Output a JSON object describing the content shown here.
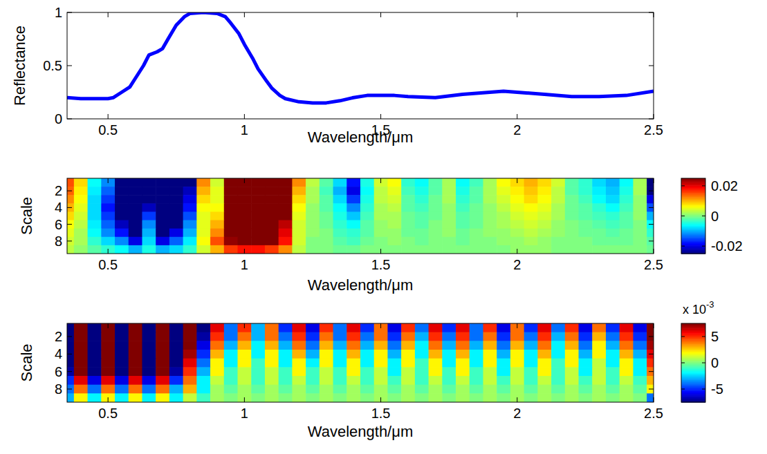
{
  "chart_data": [
    {
      "type": "line",
      "x_label": "Wavelength/μm",
      "y_label": "Reflectance",
      "color": "#0000ff",
      "xlim": [
        0.35,
        2.5
      ],
      "xticks": [
        0.5,
        1,
        1.5,
        2,
        2.5
      ],
      "ylim": [
        0,
        1
      ],
      "yticks": [
        0,
        0.5,
        1
      ],
      "x": [
        0.35,
        0.4,
        0.45,
        0.5,
        0.52,
        0.55,
        0.58,
        0.6,
        0.63,
        0.65,
        0.68,
        0.7,
        0.72,
        0.75,
        0.78,
        0.8,
        0.85,
        0.9,
        0.93,
        0.95,
        0.98,
        1,
        1.03,
        1.05,
        1.08,
        1.1,
        1.13,
        1.15,
        1.2,
        1.25,
        1.3,
        1.35,
        1.4,
        1.45,
        1.5,
        1.55,
        1.6,
        1.7,
        1.8,
        1.9,
        1.95,
        2,
        2.1,
        2.2,
        2.3,
        2.4,
        2.5
      ],
      "values": [
        0.2,
        0.19,
        0.19,
        0.19,
        0.2,
        0.25,
        0.3,
        0.38,
        0.5,
        0.6,
        0.63,
        0.66,
        0.75,
        0.88,
        0.96,
        0.99,
        1,
        0.99,
        0.96,
        0.9,
        0.8,
        0.7,
        0.57,
        0.47,
        0.36,
        0.29,
        0.22,
        0.19,
        0.16,
        0.15,
        0.15,
        0.17,
        0.2,
        0.22,
        0.22,
        0.22,
        0.21,
        0.2,
        0.23,
        0.25,
        0.26,
        0.25,
        0.23,
        0.21,
        0.21,
        0.22,
        0.26
      ]
    },
    {
      "type": "heatmap",
      "x_label": "Wavelength/μm",
      "y_label": "Scale",
      "xlim": [
        0.35,
        2.5
      ],
      "xticks": [
        0.5,
        1,
        1.5,
        2,
        2.5
      ],
      "ylim": [
        0.5,
        9.5
      ],
      "yticks": [
        2,
        4,
        6,
        8
      ],
      "x": [
        0.35,
        0.4,
        0.45,
        0.5,
        0.55,
        0.6,
        0.65,
        0.7,
        0.75,
        0.8,
        0.85,
        0.9,
        0.95,
        1,
        1.05,
        1.1,
        1.15,
        1.2,
        1.25,
        1.3,
        1.35,
        1.4,
        1.45,
        1.5,
        1.55,
        1.6,
        1.65,
        1.7,
        1.75,
        1.8,
        1.85,
        1.9,
        1.95,
        2,
        2.05,
        2.1,
        2.15,
        2.2,
        2.25,
        2.3,
        2.35,
        2.4,
        2.45,
        2.5
      ],
      "y": [
        1,
        2,
        3,
        4,
        5,
        6,
        7,
        8,
        9
      ],
      "cells": [
        [
          0.015,
          0.008,
          -0.006,
          -0.012,
          -0.03,
          -0.03,
          -0.03,
          -0.03,
          -0.03,
          -0.025,
          0.012,
          0.004,
          0.03,
          0.03,
          0.03,
          0.03,
          0.03,
          0.012,
          0.003,
          -0.002,
          -0.008,
          -0.018,
          -0.005,
          0.004,
          0.006,
          -0.004,
          -0.006,
          -0.002,
          0.002,
          -0.006,
          -0.003,
          0.002,
          0.006,
          0.008,
          0.01,
          0.008,
          0.004,
          -0.002,
          -0.004,
          -0.008,
          -0.01,
          -0.006,
          0.002,
          -0.03
        ],
        [
          0.014,
          0.007,
          -0.007,
          -0.014,
          -0.03,
          -0.03,
          -0.03,
          -0.03,
          -0.03,
          -0.022,
          0.01,
          0.005,
          0.03,
          0.03,
          0.03,
          0.03,
          0.03,
          0.01,
          0.002,
          -0.003,
          -0.01,
          -0.02,
          -0.006,
          0.003,
          0.005,
          -0.003,
          -0.005,
          -0.002,
          0.002,
          -0.005,
          -0.002,
          0.002,
          0.005,
          0.007,
          0.009,
          0.007,
          0.003,
          -0.002,
          -0.004,
          -0.007,
          -0.009,
          -0.005,
          0.002,
          -0.025
        ],
        [
          0.012,
          0.006,
          -0.008,
          -0.016,
          -0.03,
          -0.03,
          -0.03,
          -0.03,
          -0.03,
          -0.02,
          0.008,
          0.005,
          0.03,
          0.03,
          0.03,
          0.03,
          0.03,
          0.008,
          0.002,
          -0.002,
          -0.008,
          -0.016,
          -0.005,
          0.003,
          0.004,
          -0.002,
          -0.004,
          -0.001,
          0.002,
          -0.004,
          -0.002,
          0.002,
          0.004,
          0.006,
          0.008,
          0.006,
          0.003,
          -0.001,
          -0.003,
          -0.006,
          -0.008,
          -0.004,
          0.001,
          -0.02
        ],
        [
          0.01,
          0.005,
          -0.008,
          -0.018,
          -0.03,
          -0.03,
          -0.022,
          -0.03,
          -0.03,
          -0.018,
          0.006,
          0.006,
          0.03,
          0.03,
          0.03,
          0.03,
          0.028,
          0.006,
          0.001,
          -0.002,
          -0.006,
          -0.012,
          -0.004,
          0.002,
          0.003,
          -0.002,
          -0.003,
          -0.001,
          0.001,
          -0.003,
          -0.001,
          0.001,
          0.003,
          0.005,
          0.006,
          0.005,
          0.002,
          -0.001,
          -0.002,
          -0.004,
          -0.006,
          -0.003,
          0.001,
          -0.015
        ],
        [
          0.008,
          0.004,
          -0.008,
          -0.016,
          -0.025,
          -0.03,
          -0.016,
          -0.03,
          -0.028,
          -0.015,
          0.005,
          0.008,
          0.03,
          0.03,
          0.03,
          0.03,
          0.025,
          0.005,
          0.001,
          -0.001,
          -0.005,
          -0.009,
          -0.003,
          0.002,
          0.002,
          -0.001,
          -0.002,
          -0.001,
          0.001,
          -0.002,
          -0.001,
          0.001,
          0.002,
          0.004,
          0.005,
          0.004,
          0.002,
          -0.001,
          -0.002,
          -0.003,
          -0.004,
          -0.002,
          0.001,
          -0.01
        ],
        [
          0.006,
          0.003,
          -0.007,
          -0.014,
          -0.022,
          -0.03,
          -0.012,
          -0.03,
          -0.025,
          -0.012,
          0.005,
          0.01,
          0.028,
          0.03,
          0.03,
          0.03,
          0.022,
          0.004,
          0.001,
          -0.001,
          -0.004,
          -0.006,
          -0.002,
          0.001,
          0.002,
          -0.001,
          -0.002,
          0,
          0.001,
          -0.002,
          -0.001,
          0.001,
          0.002,
          0.003,
          0.004,
          0.003,
          0.001,
          0,
          -0.001,
          -0.002,
          -0.003,
          -0.002,
          0,
          -0.006
        ],
        [
          0.005,
          0.002,
          -0.006,
          -0.012,
          -0.018,
          -0.028,
          -0.01,
          -0.028,
          -0.02,
          -0.01,
          0.005,
          0.012,
          0.026,
          0.03,
          0.03,
          0.03,
          0.02,
          0.004,
          0.001,
          0,
          -0.003,
          -0.004,
          -0.002,
          0.001,
          0.001,
          -0.001,
          -0.001,
          0,
          0.001,
          -0.001,
          0,
          0.001,
          0.001,
          0.002,
          0.003,
          0.002,
          0.001,
          0,
          -0.001,
          -0.001,
          -0.002,
          -0.001,
          0,
          -0.004
        ],
        [
          0.004,
          0.002,
          -0.004,
          -0.008,
          -0.012,
          -0.02,
          -0.008,
          -0.02,
          -0.014,
          -0.007,
          0.006,
          0.015,
          0.024,
          0.028,
          0.028,
          0.026,
          0.018,
          0.004,
          0,
          0,
          -0.002,
          -0.003,
          -0.001,
          0,
          0.001,
          0,
          -0.001,
          0,
          0,
          -0.001,
          0,
          0,
          0.001,
          0.001,
          0.002,
          0.001,
          0,
          0,
          0,
          -0.001,
          -0.001,
          -0.001,
          0,
          -0.002
        ],
        [
          0.003,
          0.001,
          -0.002,
          -0.004,
          -0.006,
          -0.01,
          -0.005,
          -0.01,
          -0.008,
          -0.004,
          0.004,
          0.01,
          0.016,
          0.018,
          0.018,
          0.016,
          0.012,
          0.003,
          0,
          0,
          -0.001,
          -0.001,
          0,
          0,
          0,
          0,
          0,
          0,
          0,
          0,
          0,
          0,
          0,
          0.001,
          0.001,
          0.001,
          0,
          0,
          0,
          0,
          0,
          0,
          0,
          -0.001
        ]
      ],
      "colorbar": {
        "range": [
          -0.025,
          0.025
        ],
        "ticks": [
          -0.02,
          0,
          0.02
        ]
      }
    },
    {
      "type": "heatmap",
      "x_label": "Wavelength/μm",
      "y_label": "Scale",
      "xlim": [
        0.35,
        2.5
      ],
      "xticks": [
        0.5,
        1,
        1.5,
        2,
        2.5
      ],
      "ylim": [
        0.5,
        9.5
      ],
      "yticks": [
        2,
        4,
        6,
        8
      ],
      "x": [
        0.35,
        0.4,
        0.45,
        0.5,
        0.55,
        0.6,
        0.65,
        0.7,
        0.75,
        0.8,
        0.85,
        0.9,
        0.95,
        1,
        1.05,
        1.1,
        1.15,
        1.2,
        1.25,
        1.3,
        1.35,
        1.4,
        1.45,
        1.5,
        1.55,
        1.6,
        1.65,
        1.7,
        1.75,
        1.8,
        1.85,
        1.9,
        1.95,
        2,
        2.05,
        2.1,
        2.15,
        2.2,
        2.25,
        2.3,
        2.35,
        2.4,
        2.45,
        2.5
      ],
      "y": [
        1,
        2,
        3,
        4,
        5,
        6,
        7,
        8,
        9
      ],
      "cells": [
        [
          -8,
          8,
          -8,
          8,
          -8,
          8,
          -8,
          8,
          -8,
          8,
          -8,
          6,
          -4,
          5,
          -3,
          4,
          -5,
          6,
          -6,
          5,
          -4,
          6,
          -5,
          4,
          -6,
          5,
          -4,
          6,
          -5,
          6,
          -4,
          5,
          -6,
          4,
          -5,
          6,
          -4,
          5,
          -6,
          4,
          -5,
          6,
          -6,
          8
        ],
        [
          -8,
          8,
          -8,
          8,
          -8,
          8,
          -8,
          8,
          -8,
          8,
          -7,
          5,
          -4,
          4,
          -3,
          4,
          -4,
          5,
          -5,
          4,
          -4,
          5,
          -4,
          4,
          -5,
          4,
          -3,
          5,
          -4,
          5,
          -4,
          4,
          -5,
          4,
          -4,
          5,
          -3,
          4,
          -5,
          3,
          -4,
          5,
          -5,
          8
        ],
        [
          -8,
          8,
          -8,
          8,
          -8,
          8,
          -8,
          8,
          -8,
          8,
          -6,
          4,
          -3,
          3,
          -2,
          3,
          -3,
          4,
          -4,
          3,
          -3,
          4,
          -3,
          3,
          -4,
          3,
          -2,
          4,
          -3,
          4,
          -3,
          3,
          -4,
          3,
          -3,
          4,
          -2,
          3,
          -4,
          2,
          -3,
          4,
          -4,
          7
        ],
        [
          -8,
          8,
          -8,
          8,
          -8,
          8,
          -8,
          8,
          -8,
          7,
          -5,
          3,
          -2,
          2,
          -2,
          2,
          -2,
          3,
          -3,
          2,
          -2,
          3,
          -2,
          2,
          -3,
          2,
          -2,
          3,
          -2,
          3,
          -2,
          2,
          -3,
          2,
          -2,
          3,
          -2,
          2,
          -3,
          2,
          -2,
          3,
          -3,
          6
        ],
        [
          -8,
          8,
          -8,
          8,
          -8,
          8,
          -8,
          8,
          -8,
          6,
          -4,
          2,
          -2,
          2,
          -1,
          2,
          -2,
          2,
          -2,
          2,
          -2,
          2,
          -2,
          2,
          -2,
          2,
          -1,
          2,
          -2,
          2,
          -2,
          2,
          -2,
          2,
          -2,
          2,
          -1,
          2,
          -2,
          1,
          -2,
          2,
          -2,
          5
        ],
        [
          -7,
          8,
          -8,
          8,
          -8,
          8,
          -8,
          8,
          -7,
          5,
          -3,
          2,
          -1,
          1,
          -1,
          1,
          -1,
          2,
          -1,
          1,
          -1,
          2,
          -1,
          1,
          -2,
          1,
          -1,
          2,
          -1,
          2,
          -1,
          1,
          -2,
          1,
          -1,
          2,
          -1,
          1,
          -2,
          1,
          -1,
          2,
          -2,
          4
        ],
        [
          -5,
          6,
          -6,
          6,
          -6,
          6,
          -6,
          6,
          -5,
          4,
          -2,
          1,
          -1,
          1,
          -1,
          1,
          -1,
          1,
          -1,
          1,
          -1,
          1,
          -1,
          1,
          -1,
          1,
          -1,
          1,
          -1,
          1,
          -1,
          1,
          -1,
          1,
          -1,
          1,
          -1,
          1,
          -1,
          1,
          -1,
          1,
          -1,
          3
        ],
        [
          -4,
          4,
          -4,
          4,
          -4,
          4,
          -4,
          4,
          -3,
          3,
          -2,
          0.5,
          -0.5,
          0.5,
          -0.5,
          0.5,
          -0.5,
          0.5,
          -0.5,
          0.5,
          -0.5,
          0.5,
          -0.5,
          0.5,
          -0.5,
          0.5,
          -0.5,
          0.5,
          -0.5,
          0.5,
          -0.5,
          0.5,
          -0.5,
          0.5,
          -0.5,
          0.5,
          -0.5,
          0.5,
          -0.5,
          0.5,
          -0.5,
          0.5,
          -0.5,
          2
        ],
        [
          -3,
          2,
          -2,
          2,
          -2,
          2,
          -2,
          2,
          -2,
          1,
          -1,
          0.5,
          0,
          0.5,
          0,
          0.5,
          0,
          0.5,
          0,
          0.5,
          0,
          0.5,
          0,
          0.5,
          0,
          0.5,
          0,
          0.5,
          0,
          0.5,
          0,
          0.5,
          0,
          0.5,
          0,
          0.5,
          0,
          0.5,
          0,
          0.5,
          0,
          0.5,
          0,
          -4
        ]
      ],
      "colorbar": {
        "range": [
          -7.5,
          7.5
        ],
        "ticks": [
          -5,
          0,
          5
        ],
        "multiplier": "x 10",
        "exponent": "-3"
      }
    }
  ]
}
